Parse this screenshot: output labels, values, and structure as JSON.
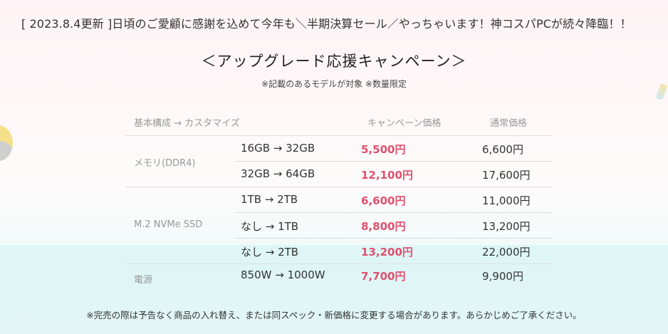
{
  "header": "[ 2023.8.4更新 ]日頃のご愛顧に感謝を込めて今年も＼半期決算セール／やっちゃいます！神コスパPCが続々降臨！！",
  "title": "＜アップグレード応援キャンペーン＞",
  "subtitle": "※記載のあるモデルが対象 ※数量限定",
  "table": {
    "headers": {
      "config": "基本構成 → カスタマイズ",
      "campaign": "キャンペーン価格",
      "regular": "通常価格"
    },
    "categories": {
      "memory": "メモリ(DDR4)",
      "ssd": "M.2 NVMe SSD",
      "psu": "電源"
    },
    "rows": [
      {
        "spec": "16GB → 32GB",
        "campaign": "5,500円",
        "regular": "6,600円"
      },
      {
        "spec": "32GB → 64GB",
        "campaign": "12,100円",
        "regular": "17,600円"
      },
      {
        "spec": "1TB → 2TB",
        "campaign": "6,600円",
        "regular": "11,000円"
      },
      {
        "spec": "なし → 1TB",
        "campaign": "8,800円",
        "regular": "13,200円"
      },
      {
        "spec": "なし → 2TB",
        "campaign": "13,200円",
        "regular": "22,000円"
      },
      {
        "spec": "850W → 1000W",
        "campaign": "7,700円",
        "regular": "9,900円"
      }
    ]
  },
  "footnote": "※完売の際は予告なく商品の入れ替え、または同スペック・新価格に変更する場合があります。あらかじめご了承ください。",
  "colors": {
    "campaign_price": "#e0506e",
    "header_gray": "#999999",
    "text": "#333333"
  }
}
